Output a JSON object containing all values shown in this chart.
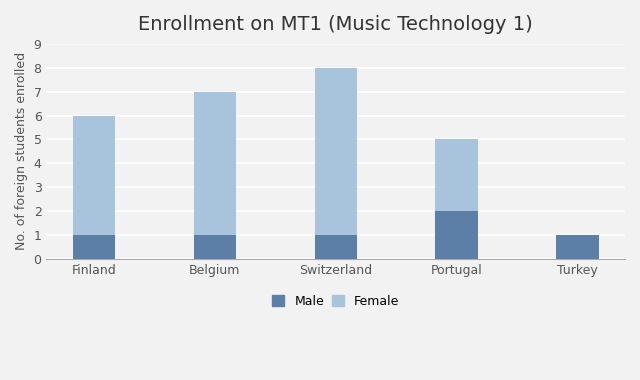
{
  "title": "Enrollment on MT1 (Music Technology 1)",
  "categories": [
    "Finland",
    "Belgium",
    "Switzerland",
    "Portugal",
    "Turkey"
  ],
  "male_values": [
    1,
    1,
    1,
    2,
    1
  ],
  "female_values": [
    5,
    6,
    7,
    3,
    0
  ],
  "male_color": "#5b7fa6",
  "female_color": "#a8c4dc",
  "ylabel": "No. of foreign students enrolled",
  "ylim": [
    0,
    9
  ],
  "yticks": [
    0,
    1,
    2,
    3,
    4,
    5,
    6,
    7,
    8,
    9
  ],
  "legend_labels": [
    "Male",
    "Female"
  ],
  "background_color": "#f2f2f2",
  "plot_bg_color": "#f2f2f2",
  "grid_color": "#ffffff",
  "title_fontsize": 14,
  "axis_fontsize": 9,
  "bar_width": 0.35
}
